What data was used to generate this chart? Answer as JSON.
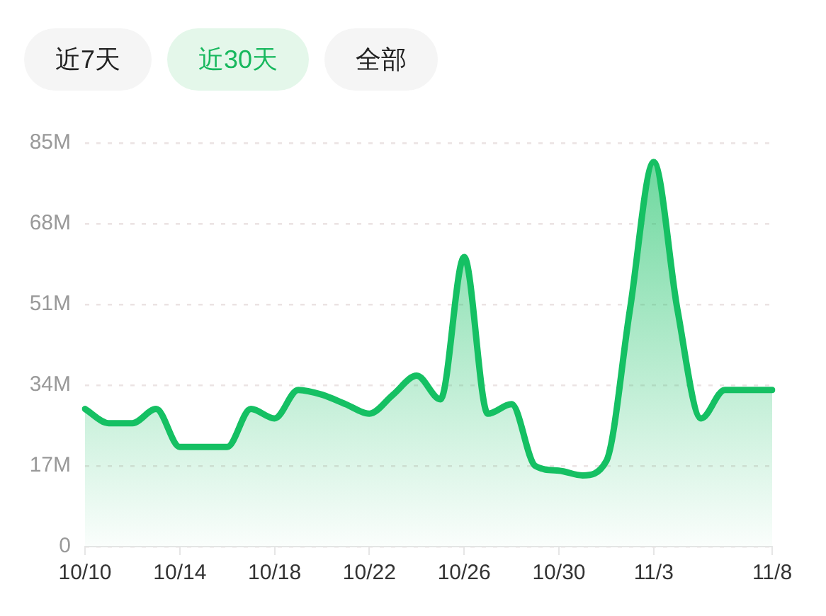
{
  "chart_data": {
    "type": "area",
    "annotations": [
      "近7天",
      "近30天",
      "全部"
    ],
    "categories": [
      "10/10",
      null,
      null,
      null,
      "10/14",
      null,
      null,
      null,
      "10/18",
      null,
      null,
      null,
      "10/22",
      null,
      null,
      null,
      "10/26",
      null,
      null,
      null,
      "10/30",
      null,
      null,
      null,
      "11/3",
      null,
      null,
      null,
      null,
      "11/8"
    ],
    "values": [
      29,
      26,
      26,
      29,
      21,
      21,
      21,
      29,
      27,
      33,
      32,
      30,
      28,
      32,
      36,
      31,
      61,
      28,
      30,
      17,
      16,
      15,
      18,
      50,
      81,
      50,
      27,
      33,
      33,
      33
    ],
    "color": "#15c063",
    "ylim": [
      0,
      85
    ],
    "yticks": [
      0,
      {
        "value": 17,
        "label": "17M"
      },
      {
        "value": 34,
        "label": "34M"
      },
      {
        "value": 51,
        "label": "51M"
      },
      {
        "value": 68,
        "label": "68M"
      },
      {
        "value": 85,
        "label": "85M"
      }
    ],
    "grid": "y",
    "line_style": "solid"
  }
}
